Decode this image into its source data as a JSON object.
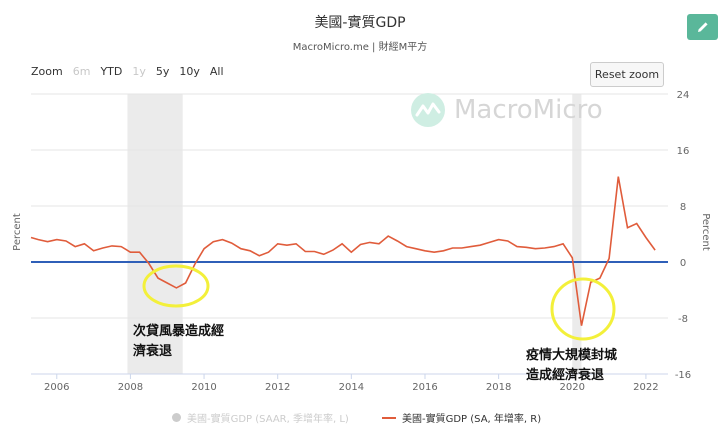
{
  "header": {
    "title": "美國-實質GDP",
    "subtitle": "MacroMicro.me | 財經M平方"
  },
  "toolbar": {
    "zoom_label": "Zoom",
    "zoom_options": [
      "6m",
      "YTD",
      "1y",
      "5y",
      "10y",
      "All"
    ],
    "reset_label": "Reset zoom"
  },
  "watermark": {
    "text": "MacroMicro"
  },
  "annotations": {
    "gfc": [
      "次貸風暴造成經",
      "濟衰退"
    ],
    "covid": [
      "疫情大規模封城",
      "造成經濟衰退"
    ]
  },
  "legend": {
    "saar_label": "美國-實質GDP (SAAR, 季增年率, L)",
    "sa_label": "美國-實質GDP (SA, 年增率, R)"
  },
  "colors": {
    "series": "#e05c3b",
    "zero_line": "#2f5fb8",
    "recession": "#ebebeb",
    "highlight_circle": "#f3f03a",
    "edit_button": "#5ab79a"
  },
  "chart_data": {
    "type": "line",
    "title": "美國-實質GDP",
    "subtitle": "MacroMicro.me | 財經M平方",
    "xlabel": "",
    "ylabel_left": "Percent",
    "ylabel_right": "Percent",
    "x_range": [
      2005.3,
      2022.6
    ],
    "ylim": [
      -16,
      24
    ],
    "ticks_x": [
      "2006",
      "2008",
      "2010",
      "2012",
      "2014",
      "2016",
      "2018",
      "2020",
      "2022"
    ],
    "ticks_y": [
      "24",
      "16",
      "8",
      "0",
      "-8",
      "-16"
    ],
    "grid": true,
    "legend_position": "bottom",
    "recessions": [
      [
        2007.92,
        2009.42
      ],
      [
        2020.0,
        2020.25
      ]
    ],
    "series": [
      {
        "name": "美國-實質GDP (SA, 年增率, R)",
        "x": [
          2005.25,
          2005.5,
          2005.75,
          2006.0,
          2006.25,
          2006.5,
          2006.75,
          2007.0,
          2007.25,
          2007.5,
          2007.75,
          2008.0,
          2008.25,
          2008.5,
          2008.75,
          2009.0,
          2009.25,
          2009.5,
          2009.75,
          2010.0,
          2010.25,
          2010.5,
          2010.75,
          2011.0,
          2011.25,
          2011.5,
          2011.75,
          2012.0,
          2012.25,
          2012.5,
          2012.75,
          2013.0,
          2013.25,
          2013.5,
          2013.75,
          2014.0,
          2014.25,
          2014.5,
          2014.75,
          2015.0,
          2015.25,
          2015.5,
          2015.75,
          2016.0,
          2016.25,
          2016.5,
          2016.75,
          2017.0,
          2017.25,
          2017.5,
          2017.75,
          2018.0,
          2018.25,
          2018.5,
          2018.75,
          2019.0,
          2019.25,
          2019.5,
          2019.75,
          2020.0,
          2020.25,
          2020.5,
          2020.75,
          2021.0,
          2021.25,
          2021.5,
          2021.75,
          2022.0,
          2022.25
        ],
        "y": [
          3.5,
          3.2,
          2.9,
          3.2,
          3.0,
          2.2,
          2.6,
          1.6,
          2.0,
          2.3,
          2.2,
          1.4,
          1.4,
          -0.2,
          -2.3,
          -3.0,
          -3.7,
          -3.0,
          -0.3,
          1.9,
          2.9,
          3.2,
          2.7,
          1.9,
          1.6,
          0.9,
          1.4,
          2.6,
          2.4,
          2.6,
          1.5,
          1.5,
          1.1,
          1.7,
          2.6,
          1.4,
          2.5,
          2.8,
          2.6,
          3.7,
          3.0,
          2.2,
          1.9,
          1.6,
          1.4,
          1.6,
          2.0,
          2.0,
          2.2,
          2.4,
          2.8,
          3.2,
          3.0,
          2.2,
          2.1,
          1.9,
          2.0,
          2.2,
          2.6,
          0.6,
          -9.1,
          -2.9,
          -2.3,
          0.5,
          12.2,
          4.9,
          5.5,
          3.5,
          1.7
        ]
      }
    ]
  }
}
